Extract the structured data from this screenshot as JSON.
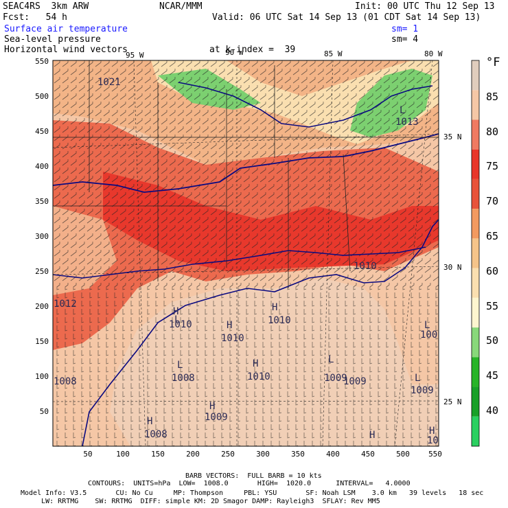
{
  "header": {
    "model": "SEAC4RS  3km ARW",
    "org": "NCAR/MMM",
    "init": "Init: 00 UTC Thu 12 Sep 13",
    "fcst": "Fcst:   54 h",
    "valid": "Valid: 06 UTC Sat 14 Sep 13 (01 CDT Sat 14 Sep 13)",
    "field1": "Surface air temperature",
    "field2": "Sea-level pressure",
    "field3": "Horizontal wind vectors",
    "sm1": "sm= 1",
    "sm2": "sm= 4",
    "kindex": "at k-index =  39"
  },
  "lon_labels": [
    "95 W",
    "90 W",
    "85 W",
    "80 W"
  ],
  "lat_labels": [
    "35 N",
    "30 N",
    "25 N"
  ],
  "y_ticks": [
    "550",
    "500",
    "450",
    "400",
    "350",
    "300",
    "250",
    "200",
    "150",
    "100",
    "50"
  ],
  "x_ticks": [
    "50",
    "100",
    "150",
    "200",
    "250",
    "300",
    "350",
    "400",
    "450",
    "500",
    "550"
  ],
  "colorbar": {
    "unit": "°F",
    "labels": [
      "85",
      "80",
      "75",
      "70",
      "65",
      "60",
      "55",
      "50",
      "45",
      "40"
    ],
    "colors": [
      "#e0cdbd",
      "#f5c7a6",
      "#f07a62",
      "#e8362a",
      "#e8533a",
      "#f29a60",
      "#f5c48a",
      "#fadfb0",
      "#fdf5cf",
      "#88d87a",
      "#28b428",
      "#18a028",
      "#2ad060"
    ]
  },
  "pressure_labels": [
    {
      "text": "1021"
    },
    {
      "text": "1013"
    },
    {
      "text": "1012"
    },
    {
      "text": "1010"
    },
    {
      "text": "1010"
    },
    {
      "text": "1010"
    },
    {
      "text": "1010"
    },
    {
      "text": "1008"
    },
    {
      "text": "1010"
    },
    {
      "text": "1009"
    },
    {
      "text": "1009"
    },
    {
      "text": "1009"
    },
    {
      "text": "1008"
    },
    {
      "text": "1008"
    },
    {
      "text": "1009"
    },
    {
      "text": "100"
    },
    {
      "text": "10"
    }
  ],
  "hl_marks": [
    "L",
    "H",
    "H",
    "L",
    "H",
    "L",
    "H",
    "L",
    "H",
    "H",
    "L",
    "L",
    "H",
    "H"
  ],
  "footer": {
    "barb": "BARB VECTORS:  FULL BARB = 10 kts",
    "contours": "CONTOURS:  UNITS=hPa  LOW=  1008.0       HIGH=  1020.0      INTERVAL=   4.0000",
    "line1": "Model Info: V3.5       CU: No Cu     MP: Thompson     PBL: YSU       SF: Noah LSM    3.0 km   39 levels   18 sec",
    "line2": "     LW: RRTMG    SW: RRTMG  DIFF: simple KM: 2D Smagor DAMP: Rayleigh3  SFLAY: Rev MM5"
  }
}
